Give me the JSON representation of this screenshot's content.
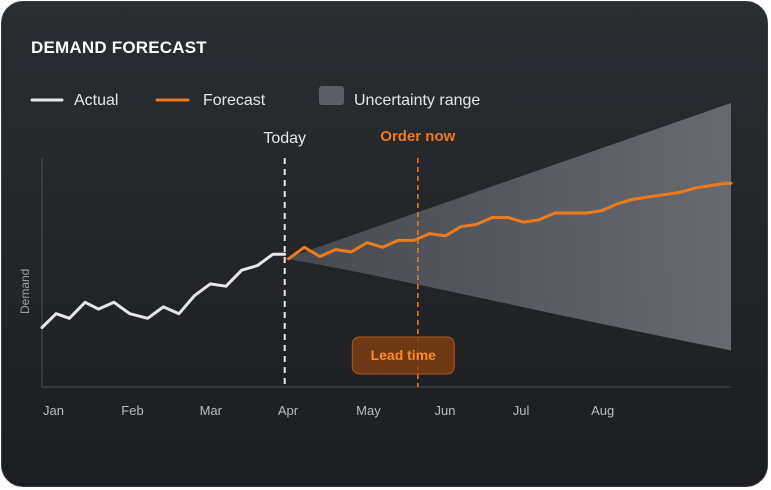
{
  "chart_data": {
    "type": "line",
    "title": "DEMAND FORECAST",
    "ylabel": "Demand",
    "xlabel": "",
    "x_ticks": [
      "Jan",
      "Feb",
      "Mar",
      "Apr",
      "May",
      "Jun",
      "Jul",
      "Aug"
    ],
    "x_range": [
      0,
      8.8
    ],
    "y_range": [
      0,
      100
    ],
    "legend": [
      {
        "label": "Actual",
        "kind": "line",
        "color": "#e6e6e6"
      },
      {
        "label": "Forecast",
        "kind": "line",
        "color": "#f07a1a"
      },
      {
        "label": "Uncertainty range",
        "kind": "area",
        "color": "#5c6066"
      }
    ],
    "legend_placement": "top-left",
    "grid": false,
    "series": [
      {
        "name": "Actual",
        "color": "#e6e6e6",
        "points": [
          [
            0.0,
            26
          ],
          [
            0.18,
            32
          ],
          [
            0.35,
            30
          ],
          [
            0.55,
            37
          ],
          [
            0.72,
            34
          ],
          [
            0.92,
            37
          ],
          [
            1.12,
            32
          ],
          [
            1.35,
            30
          ],
          [
            1.55,
            35
          ],
          [
            1.75,
            32
          ],
          [
            1.95,
            40
          ],
          [
            2.15,
            45
          ],
          [
            2.35,
            44
          ],
          [
            2.55,
            51
          ],
          [
            2.75,
            53
          ],
          [
            2.95,
            58
          ],
          [
            3.1,
            58
          ]
        ]
      },
      {
        "name": "Forecast",
        "color": "#f07a1a",
        "points": [
          [
            3.15,
            56
          ],
          [
            3.35,
            61
          ],
          [
            3.55,
            57
          ],
          [
            3.75,
            60
          ],
          [
            3.95,
            59
          ],
          [
            4.15,
            63
          ],
          [
            4.35,
            61
          ],
          [
            4.55,
            64
          ],
          [
            4.75,
            64
          ],
          [
            4.95,
            67
          ],
          [
            5.15,
            66
          ],
          [
            5.35,
            70
          ],
          [
            5.55,
            71
          ],
          [
            5.75,
            74
          ],
          [
            5.95,
            74
          ],
          [
            6.15,
            72
          ],
          [
            6.35,
            73
          ],
          [
            6.55,
            76
          ],
          [
            6.75,
            76
          ],
          [
            6.95,
            76
          ],
          [
            7.15,
            77
          ],
          [
            7.35,
            80
          ],
          [
            7.55,
            82
          ],
          [
            7.75,
            83
          ],
          [
            7.95,
            84
          ],
          [
            8.15,
            85
          ],
          [
            8.35,
            87
          ],
          [
            8.55,
            88
          ],
          [
            8.75,
            89
          ],
          [
            8.8,
            89
          ]
        ]
      }
    ],
    "uncertainty": {
      "x": [
        3.1,
        8.8
      ],
      "center": 56,
      "upper_end": 124,
      "lower_end": 16
    },
    "annotations": {
      "today": {
        "label": "Today",
        "x": 3.1
      },
      "order_now": {
        "label": "Order now",
        "x": 4.8
      },
      "lead_time": {
        "label": "Lead time"
      }
    }
  }
}
